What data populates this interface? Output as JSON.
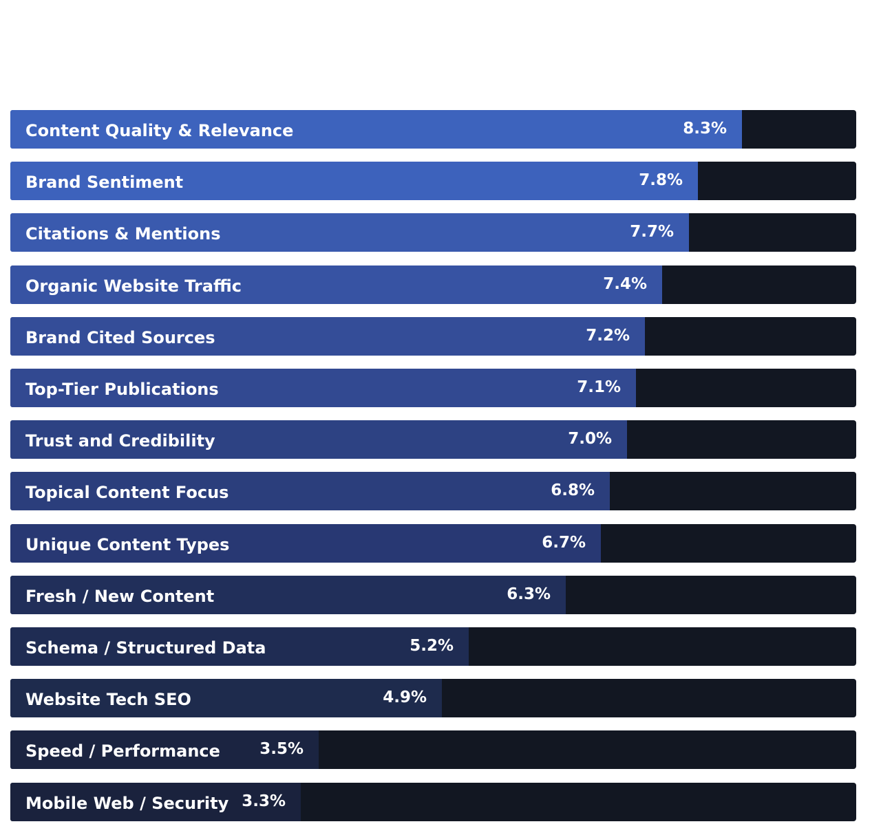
{
  "chart_data": {
    "type": "bar",
    "orientation": "horizontal",
    "categories": [
      "Content Quality & Relevance",
      "Brand Sentiment",
      "Citations & Mentions",
      "Organic Website Traffic",
      "Brand Cited Sources",
      "Top-Tier Publications",
      "Trust and Credibility",
      "Topical Content Focus",
      "Unique Content Types",
      "Fresh / New Content",
      "Schema / Structured Data",
      "Website Tech SEO",
      "Speed / Performance",
      "Mobile Web / Security"
    ],
    "values": [
      8.3,
      7.8,
      7.7,
      7.4,
      7.2,
      7.1,
      7.0,
      6.8,
      6.7,
      6.3,
      5.2,
      4.9,
      3.5,
      3.3
    ],
    "value_labels": [
      "8.3%",
      "7.8%",
      "7.7%",
      "7.4%",
      "7.2%",
      "7.1%",
      "7.0%",
      "6.8%",
      "6.7%",
      "6.3%",
      "5.2%",
      "4.9%",
      "3.5%",
      "3.3%"
    ],
    "xlim": [
      0,
      9.6
    ],
    "bar_colors": [
      "#3d63bd",
      "#3d62bc",
      "#3a5aae",
      "#3753a3",
      "#344d98",
      "#324991",
      "#2d4283",
      "#2b3e7c",
      "#283873",
      "#212f5a",
      "#1f2c53",
      "#1e2b4d",
      "#1b2441",
      "#1a223d"
    ],
    "track_color": "#121722",
    "title": "",
    "xlabel": "",
    "ylabel": "",
    "grid": false,
    "legend": "none"
  }
}
